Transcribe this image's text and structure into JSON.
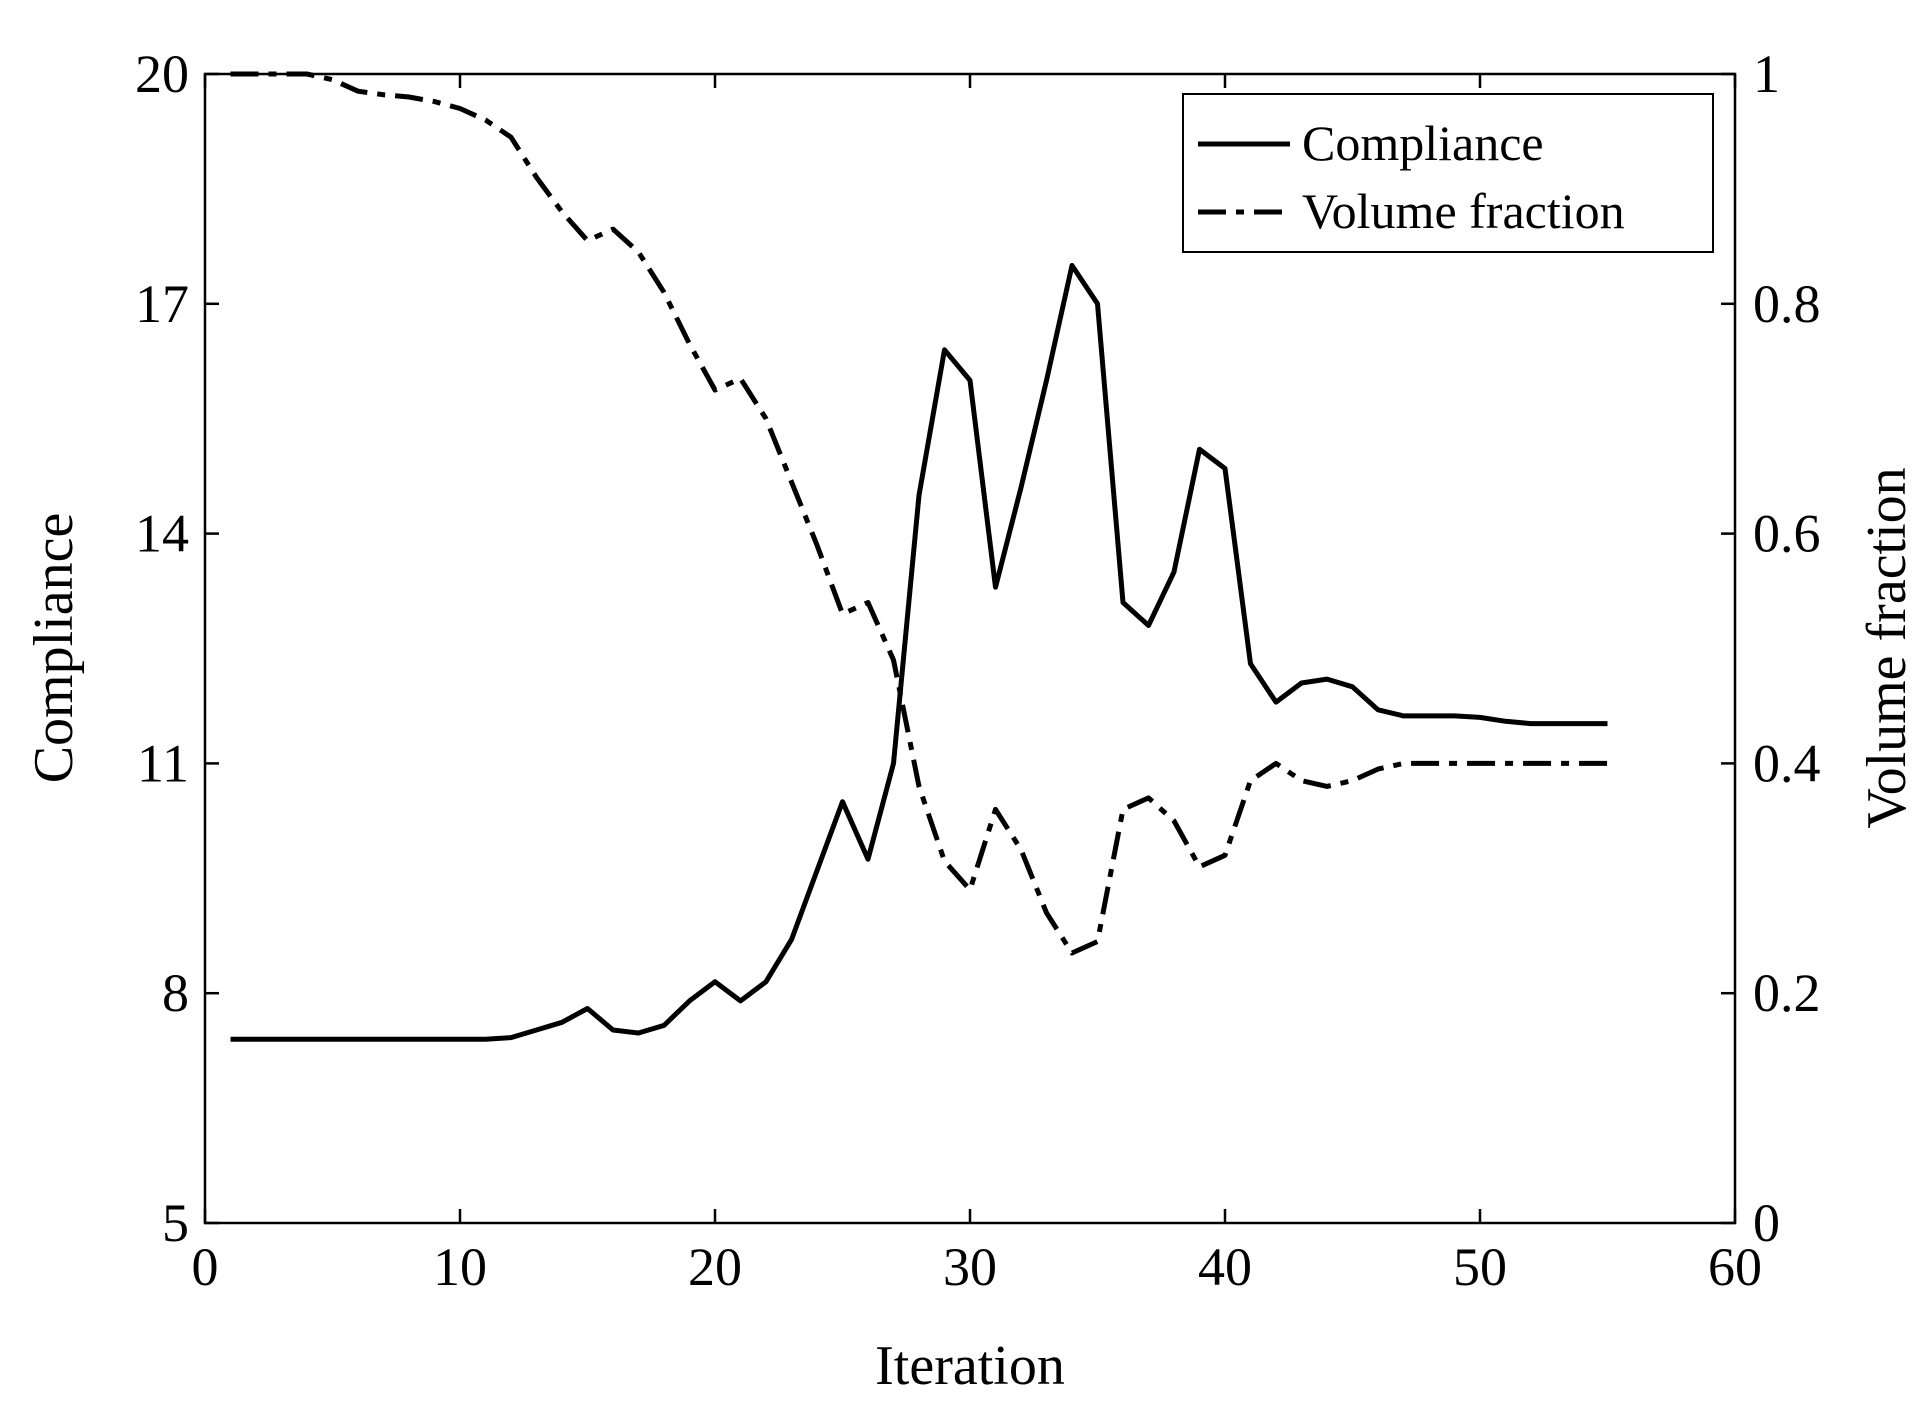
{
  "chart_data": {
    "type": "line",
    "xlabel": "Iteration",
    "ylabel_left": "Compliance",
    "ylabel_right": "Volume fraction",
    "xlim": [
      0,
      60
    ],
    "ylim_left": [
      5,
      20
    ],
    "ylim_right": [
      0,
      1
    ],
    "x_ticks": [
      "0",
      "10",
      "20",
      "30",
      "40",
      "50",
      "60"
    ],
    "y_left_ticks": [
      "5",
      "8",
      "11",
      "14",
      "17",
      "20"
    ],
    "y_right_ticks": [
      "0",
      "0.2",
      "0.4",
      "0.6",
      "0.8",
      "1"
    ],
    "grid": false,
    "legend_position": "top-right",
    "line_color": "#000000",
    "series": [
      {
        "name": "Compliance",
        "axis": "left",
        "style": "solid",
        "x": [
          1,
          2,
          3,
          4,
          5,
          6,
          7,
          8,
          9,
          10,
          11,
          12,
          13,
          14,
          15,
          16,
          17,
          18,
          19,
          20,
          21,
          22,
          23,
          24,
          25,
          26,
          27,
          28,
          29,
          30,
          31,
          32,
          33,
          34,
          35,
          36,
          37,
          38,
          39,
          40,
          41,
          42,
          43,
          44,
          45,
          46,
          47,
          48,
          49,
          50,
          51,
          52,
          53,
          54,
          55
        ],
        "values": [
          7.4,
          7.4,
          7.4,
          7.4,
          7.4,
          7.4,
          7.4,
          7.4,
          7.4,
          7.4,
          7.4,
          7.42,
          7.52,
          7.62,
          7.8,
          7.52,
          7.48,
          7.58,
          7.9,
          8.15,
          7.9,
          8.15,
          8.7,
          9.6,
          10.5,
          9.75,
          11.0,
          14.5,
          16.4,
          16.0,
          13.3,
          14.6,
          16.0,
          17.5,
          17.0,
          13.1,
          12.8,
          13.5,
          15.1,
          14.85,
          12.3,
          11.8,
          12.05,
          12.1,
          12.0,
          11.7,
          11.62,
          11.62,
          11.62,
          11.6,
          11.55,
          11.52,
          11.52,
          11.52,
          11.52
        ]
      },
      {
        "name": "Volume fraction",
        "axis": "right",
        "style": "dashdot",
        "x": [
          1,
          2,
          3,
          4,
          5,
          6,
          7,
          8,
          9,
          10,
          11,
          12,
          13,
          14,
          15,
          16,
          17,
          18,
          19,
          20,
          21,
          22,
          23,
          24,
          25,
          26,
          27,
          28,
          29,
          30,
          31,
          32,
          33,
          34,
          35,
          36,
          37,
          38,
          39,
          40,
          41,
          42,
          43,
          44,
          45,
          46,
          47,
          48,
          49,
          50,
          51,
          52,
          53,
          54,
          55
        ],
        "values": [
          1.0,
          1.0,
          1.0,
          1.0,
          0.995,
          0.985,
          0.982,
          0.98,
          0.976,
          0.97,
          0.96,
          0.945,
          0.91,
          0.88,
          0.855,
          0.865,
          0.845,
          0.81,
          0.765,
          0.725,
          0.735,
          0.7,
          0.645,
          0.59,
          0.53,
          0.54,
          0.49,
          0.38,
          0.315,
          0.29,
          0.36,
          0.325,
          0.27,
          0.235,
          0.245,
          0.36,
          0.37,
          0.35,
          0.31,
          0.32,
          0.385,
          0.4,
          0.385,
          0.38,
          0.385,
          0.395,
          0.4,
          0.4,
          0.4,
          0.4,
          0.4,
          0.4,
          0.4,
          0.4,
          0.4
        ]
      }
    ]
  }
}
